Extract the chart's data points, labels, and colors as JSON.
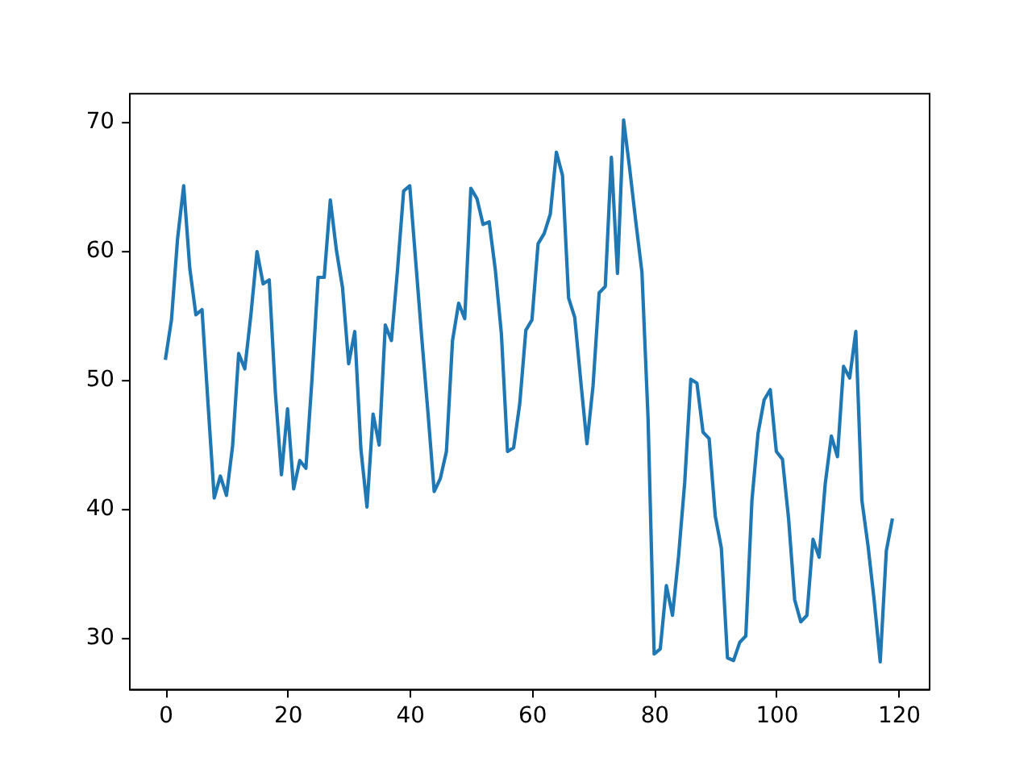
{
  "chart_data": {
    "type": "line",
    "x": [
      0,
      1,
      2,
      3,
      4,
      5,
      6,
      7,
      8,
      9,
      10,
      11,
      12,
      13,
      14,
      15,
      16,
      17,
      18,
      19,
      20,
      21,
      22,
      23,
      24,
      25,
      26,
      27,
      28,
      29,
      30,
      31,
      32,
      33,
      34,
      35,
      36,
      37,
      38,
      39,
      40,
      41,
      42,
      43,
      44,
      45,
      46,
      47,
      48,
      49,
      50,
      51,
      52,
      53,
      54,
      55,
      56,
      57,
      58,
      59,
      60,
      61,
      62,
      63,
      64,
      65,
      66,
      67,
      68,
      69,
      70,
      71,
      72,
      73,
      74,
      75,
      76,
      77,
      78,
      79,
      80,
      81,
      82,
      83,
      84,
      85,
      86,
      87,
      88,
      89,
      90,
      91,
      92,
      93,
      94,
      95,
      96,
      97,
      98,
      99,
      100,
      101,
      102,
      103,
      104,
      105,
      106,
      107,
      108,
      109,
      110,
      111,
      112,
      113,
      114,
      115,
      116,
      117,
      118,
      119
    ],
    "series": [
      {
        "color": "#1f77b4",
        "values": [
          51.5,
          54.6,
          60.9,
          65.0,
          58.6,
          55.0,
          55.4,
          48.0,
          40.8,
          42.5,
          41.0,
          44.8,
          52.0,
          50.8,
          55.0,
          59.9,
          57.4,
          57.7,
          49.0,
          42.6,
          47.7,
          41.5,
          43.7,
          43.1,
          50.0,
          57.9,
          57.9,
          63.9,
          60.0,
          57.1,
          51.2,
          53.7,
          44.6,
          40.1,
          47.3,
          44.9,
          54.2,
          53.0,
          58.5,
          64.6,
          65.0,
          59.0,
          53.0,
          47.3,
          41.3,
          42.3,
          44.4,
          53.0,
          55.9,
          54.7,
          64.8,
          64.0,
          62.0,
          62.2,
          58.5,
          53.5,
          44.4,
          44.7,
          48.1,
          53.8,
          54.6,
          60.5,
          61.3,
          62.8,
          67.6,
          65.8,
          56.3,
          54.8,
          49.8,
          45.0,
          49.5,
          56.7,
          57.2,
          67.2,
          58.2,
          70.1,
          66.3,
          62.2,
          58.3,
          47.0,
          28.7,
          29.1,
          34.0,
          31.7,
          36.3,
          42.0,
          50.0,
          49.7,
          45.9,
          45.4,
          39.4,
          36.9,
          28.4,
          28.2,
          29.6,
          30.1,
          40.6,
          45.8,
          48.4,
          49.2,
          44.4,
          43.8,
          39.2,
          32.9,
          31.2,
          31.7,
          37.6,
          36.2,
          41.9,
          45.6,
          44.0,
          51.0,
          50.1,
          53.7,
          40.6,
          37.1,
          32.9,
          28.1,
          36.7,
          39.2
        ]
      }
    ],
    "xlim": [
      -5.95,
      124.95
    ],
    "ylim": [
      26.0,
      72.2
    ],
    "xticks": [
      0,
      20,
      40,
      60,
      80,
      100,
      120
    ],
    "yticks": [
      30,
      40,
      50,
      60,
      70
    ]
  }
}
